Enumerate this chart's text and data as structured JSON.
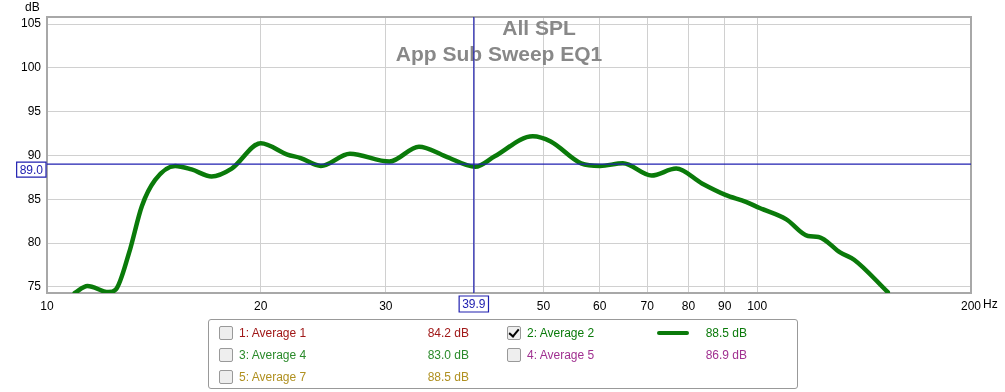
{
  "chart_data": {
    "type": "line",
    "title": "All SPL",
    "subtitle": "App Sub Sweep EQ1",
    "xlabel": "Hz",
    "ylabel": "dB",
    "x": [
      10.94,
      11.4,
      12.2,
      12.5,
      13.05,
      13.6,
      14.2,
      15.15,
      15.98,
      17.05,
      18.2,
      20.0,
      21.8,
      22.76,
      24.3,
      26.7,
      30.35,
      33.4,
      36.4,
      40.1,
      42.7,
      48.3,
      51.2,
      56.5,
      60.1,
      64.7,
      71.0,
      76.9,
      83.6,
      90.2,
      96.4,
      100.8,
      109.9,
      117.9,
      122.0,
      131.0,
      136.9,
      152.7
    ],
    "series": [
      {
        "name": "2: Average 2",
        "color": "#0a7a0a",
        "values": [
          74.3,
          75.1,
          74.4,
          74.7,
          78.9,
          84.2,
          87.2,
          88.8,
          88.4,
          87.6,
          88.5,
          91.4,
          90.1,
          89.7,
          88.8,
          90.2,
          89.3,
          91.0,
          89.9,
          88.7,
          89.9,
          92.2,
          91.6,
          89.1,
          88.8,
          89.1,
          87.7,
          88.5,
          86.8,
          85.5,
          84.7,
          84.0,
          82.7,
          80.8,
          80.7,
          78.9,
          78.1,
          74.4
        ]
      }
    ],
    "log": "x",
    "xlim": [
      10,
      200
    ],
    "ylim": [
      74.3,
      105.8
    ],
    "xticks": [
      10,
      20,
      30,
      {
        "value": 40,
        "label": null
      },
      50,
      60,
      70,
      80,
      90,
      100,
      200
    ],
    "yticks": [
      75,
      80,
      85,
      90,
      95,
      100,
      105
    ],
    "grid": true,
    "legend": "bottom",
    "marker": "none",
    "line_style": "solid",
    "ref_lines": [
      {
        "axis": "y",
        "value": 89.0,
        "label": "89.0",
        "color": "#2020b0"
      },
      {
        "axis": "x",
        "value": 39.9,
        "label": "39.9",
        "color": "#2020b0"
      }
    ],
    "annotations": [
      "1: Average 1",
      "84.2 dB",
      "88.5 dB",
      "3: Average 4",
      "83.0 dB",
      "4: Average 5",
      "86.9 dB",
      "5: Average 7",
      "88.5 dB"
    ]
  }
}
